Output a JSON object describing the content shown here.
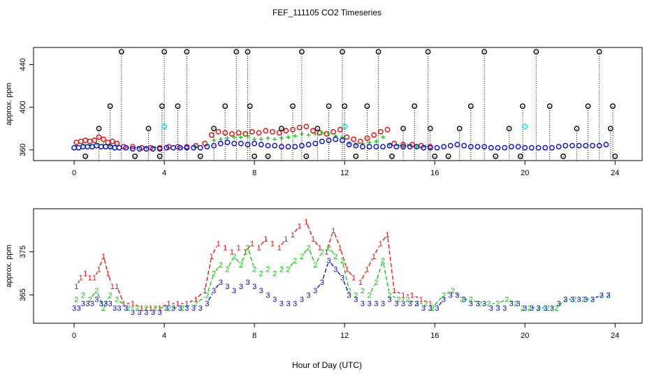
{
  "title": "FEF_111105  CO2 Timeseries",
  "xlabel": "Hour of Day (UTC)",
  "colors": {
    "red": "#ff0000",
    "green": "#00cc00",
    "blue": "#0000ff",
    "black": "#000000",
    "cyan": "#00e5e5"
  },
  "chart_data": [
    {
      "type": "scatter",
      "ylabel": "approx. ppm",
      "xlim": [
        -1.8,
        25.2
      ],
      "ylim": [
        350,
        456
      ],
      "xticks": [
        0,
        4,
        8,
        12,
        16,
        20,
        24
      ],
      "yticks": [
        360,
        400,
        440
      ],
      "series": [
        {
          "name": "red",
          "marker": "o",
          "color": "#ff0000",
          "x": [
            0.1,
            0.3,
            0.5,
            0.7,
            0.9,
            1.1,
            1.3,
            1.5,
            1.7,
            1.9,
            2.2,
            2.6,
            3.0,
            3.4,
            3.8,
            4.2,
            4.6,
            5.0,
            5.4,
            5.8,
            6.1,
            6.4,
            6.7,
            7.0,
            7.3,
            7.6,
            7.9,
            8.2,
            8.5,
            8.8,
            9.1,
            9.4,
            9.7,
            10.0,
            10.3,
            10.6,
            10.9,
            11.2,
            11.5,
            11.8,
            12.1,
            12.4,
            12.7,
            13.0,
            13.3,
            13.6,
            13.9,
            14.2,
            14.6,
            15.0,
            15.4,
            15.8
          ],
          "y": [
            367,
            368,
            369,
            368,
            369,
            372,
            370,
            367,
            368,
            366,
            363,
            363,
            362,
            362,
            362,
            363,
            363,
            363,
            364,
            366,
            374,
            377,
            376,
            375,
            376,
            375,
            377,
            376,
            378,
            377,
            376,
            378,
            379,
            381,
            382,
            378,
            376,
            375,
            377,
            379,
            372,
            370,
            368,
            371,
            374,
            377,
            379,
            366,
            365,
            365,
            364,
            363
          ]
        },
        {
          "name": "green",
          "marker": "+",
          "color": "#00cc00",
          "x": [
            0.1,
            0.4,
            0.7,
            1.0,
            1.3,
            1.6,
            1.9,
            2.4,
            2.8,
            3.2,
            3.6,
            4.2,
            4.8,
            5.4,
            5.9,
            6.2,
            6.5,
            6.8,
            7.1,
            7.4,
            7.7,
            8.0,
            8.3,
            8.6,
            8.9,
            9.2,
            9.5,
            9.8,
            10.1,
            10.4,
            10.7,
            11.0,
            11.3,
            11.6,
            11.9,
            12.2,
            12.5,
            12.8,
            13.1,
            13.4,
            13.7,
            14.0,
            14.4,
            14.8,
            15.2,
            15.6
          ],
          "y": [
            364,
            365,
            364,
            366,
            365,
            364,
            364,
            362,
            362,
            362,
            362,
            362,
            362,
            363,
            365,
            369,
            370,
            371,
            372,
            372,
            373,
            370,
            370,
            371,
            370,
            371,
            372,
            373,
            375,
            374,
            375,
            376,
            375,
            373,
            372,
            366,
            365,
            366,
            367,
            368,
            372,
            365,
            364,
            364,
            363,
            363
          ]
        },
        {
          "name": "blue",
          "marker": "o",
          "color": "#0000ff",
          "x": [
            0.0,
            0.2,
            0.4,
            0.6,
            0.8,
            1.0,
            1.2,
            1.4,
            1.6,
            1.8,
            2.0,
            2.3,
            2.6,
            2.9,
            3.2,
            3.5,
            3.8,
            4.1,
            4.4,
            4.7,
            5.0,
            5.3,
            5.6,
            5.9,
            6.2,
            6.5,
            6.8,
            7.1,
            7.4,
            7.7,
            8.0,
            8.3,
            8.6,
            8.9,
            9.2,
            9.5,
            9.8,
            10.1,
            10.4,
            10.7,
            11.0,
            11.3,
            11.6,
            11.9,
            12.2,
            12.5,
            12.8,
            13.1,
            13.4,
            13.7,
            14.0,
            14.3,
            14.6,
            14.9,
            15.2,
            15.5,
            15.8,
            16.1,
            16.4,
            16.7,
            17.0,
            17.3,
            17.6,
            17.9,
            18.2,
            18.5,
            18.8,
            19.1,
            19.4,
            19.7,
            20.0,
            20.3,
            20.6,
            20.9,
            21.2,
            21.5,
            21.8,
            22.1,
            22.4,
            22.7,
            23.0,
            23.3,
            23.6
          ],
          "y": [
            362,
            362,
            363,
            363,
            363,
            364,
            363,
            363,
            363,
            362,
            362,
            362,
            361,
            361,
            361,
            361,
            361,
            362,
            362,
            362,
            362,
            362,
            362,
            363,
            364,
            366,
            367,
            366,
            366,
            365,
            366,
            365,
            364,
            364,
            363,
            363,
            363,
            364,
            365,
            366,
            368,
            369,
            370,
            369,
            365,
            364,
            363,
            363,
            363,
            363,
            364,
            363,
            363,
            363,
            363,
            362,
            362,
            362,
            363,
            364,
            365,
            364,
            363,
            363,
            363,
            362,
            362,
            362,
            363,
            363,
            362,
            362,
            362,
            362,
            362,
            363,
            364,
            364,
            364,
            364,
            364,
            364,
            365
          ]
        },
        {
          "name": "black",
          "marker": "o",
          "color": "#000000",
          "x": [
            0.5,
            1.1,
            1.6,
            2.1,
            2.7,
            3.3,
            3.8,
            3.9,
            4.0,
            4.6,
            5.0,
            5.6,
            6.2,
            6.7,
            7.2,
            7.7,
            7.8,
            8.0,
            8.6,
            9.2,
            9.7,
            10.1,
            10.3,
            10.8,
            11.3,
            11.9,
            12.0,
            12.5,
            13.0,
            13.5,
            14.1,
            14.6,
            15.1,
            15.7,
            15.8,
            16.0,
            16.6,
            17.1,
            17.6,
            18.2,
            18.7,
            19.3,
            19.8,
            19.9,
            20.5,
            21.1,
            21.7,
            22.3,
            22.8,
            23.3,
            23.8,
            23.9,
            24.0
          ],
          "y": [
            354,
            380,
            401,
            452,
            354,
            380,
            354,
            401,
            452,
            401,
            452,
            354,
            380,
            401,
            452,
            452,
            401,
            354,
            354,
            380,
            401,
            452,
            354,
            380,
            401,
            452,
            401,
            354,
            401,
            452,
            354,
            380,
            401,
            452,
            380,
            354,
            354,
            380,
            401,
            452,
            354,
            380,
            354,
            401,
            452,
            401,
            354,
            380,
            401,
            452,
            380,
            401,
            354
          ]
        },
        {
          "name": "cyan",
          "marker": "o",
          "color": "#00e5e5",
          "x": [
            4.0,
            12.0,
            20.0
          ],
          "y": [
            382,
            382,
            382
          ]
        }
      ]
    },
    {
      "type": "line",
      "ylabel": "approx. ppm",
      "xlim": [
        -1.8,
        25.2
      ],
      "ylim": [
        358.4,
        385
      ],
      "xticks": [
        0,
        4,
        8,
        12,
        16,
        20,
        24
      ],
      "yticks": [
        365,
        375
      ],
      "series": [
        {
          "name": "1",
          "color": "#ff0000",
          "x": [
            0.1,
            0.3,
            0.5,
            0.7,
            0.9,
            1.1,
            1.3,
            1.5,
            1.7,
            1.9,
            2.2,
            2.6,
            3.0,
            3.4,
            3.8,
            4.2,
            4.6,
            5.0,
            5.4,
            5.8,
            6.1,
            6.4,
            6.7,
            7.0,
            7.3,
            7.6,
            7.9,
            8.2,
            8.5,
            8.8,
            9.1,
            9.4,
            9.7,
            10.0,
            10.3,
            10.6,
            10.9,
            11.2,
            11.5,
            11.8,
            12.1,
            12.4,
            12.7,
            13.0,
            13.3,
            13.6,
            13.9,
            14.2,
            14.6,
            15.0,
            15.4,
            15.8
          ],
          "y": [
            367,
            369,
            370,
            369,
            369,
            371,
            374,
            370,
            367,
            367,
            363,
            363,
            362,
            362,
            362,
            363,
            363,
            363,
            364,
            366,
            374,
            377,
            376,
            375,
            376,
            375,
            377,
            376,
            378,
            377,
            376,
            378,
            379,
            381,
            382,
            378,
            376,
            375,
            380,
            376,
            371,
            369,
            368,
            371,
            374,
            377,
            379,
            366,
            365,
            365,
            364,
            363
          ]
        },
        {
          "name": "2",
          "color": "#00cc00",
          "x": [
            0.1,
            0.4,
            0.7,
            1.0,
            1.3,
            1.6,
            1.9,
            2.4,
            2.8,
            3.2,
            3.6,
            4.2,
            4.8,
            5.4,
            5.9,
            6.2,
            6.5,
            6.8,
            7.1,
            7.4,
            7.7,
            8.0,
            8.3,
            8.6,
            8.9,
            9.2,
            9.5,
            9.8,
            10.1,
            10.4,
            10.7,
            11.0,
            11.3,
            11.6,
            11.9,
            12.2,
            12.5,
            12.8,
            13.1,
            13.4,
            13.7,
            14.0,
            14.4,
            14.8,
            15.2,
            15.6,
            15.9,
            16.4,
            16.8,
            17.2,
            17.6,
            18.0,
            18.4,
            18.8,
            19.2,
            19.6,
            19.9,
            20.2,
            20.6,
            21.0,
            21.4,
            21.8,
            22.2,
            22.6,
            23.0,
            23.4,
            23.7
          ],
          "y": [
            364,
            365,
            364,
            366,
            362,
            365,
            364,
            362,
            362,
            362,
            362,
            362,
            362,
            363,
            365,
            370,
            372,
            371,
            374,
            372,
            376,
            371,
            370,
            371,
            370,
            371,
            371,
            373,
            374,
            376,
            372,
            375,
            376,
            374,
            373,
            366,
            365,
            366,
            365,
            368,
            373,
            365,
            364,
            364,
            363,
            363,
            362,
            365,
            366,
            364,
            364,
            363,
            363,
            363,
            364,
            363,
            362,
            362,
            362,
            362,
            362,
            364,
            364,
            364,
            364,
            365,
            365
          ]
        },
        {
          "name": "3",
          "color": "#0000ff",
          "x": [
            0.0,
            0.2,
            0.4,
            0.6,
            0.8,
            1.0,
            1.2,
            1.4,
            1.6,
            1.8,
            2.0,
            2.3,
            2.6,
            2.9,
            3.2,
            3.5,
            3.8,
            4.1,
            4.4,
            4.7,
            5.0,
            5.3,
            5.6,
            5.9,
            6.2,
            6.5,
            6.8,
            7.1,
            7.4,
            7.7,
            8.0,
            8.3,
            8.6,
            8.9,
            9.2,
            9.5,
            9.8,
            10.1,
            10.4,
            10.7,
            11.0,
            11.3,
            11.6,
            11.9,
            12.2,
            12.5,
            12.8,
            13.1,
            13.4,
            13.7,
            14.0,
            14.3,
            14.6,
            14.9,
            15.2,
            15.5,
            15.8,
            16.1,
            16.4,
            16.7,
            17.0,
            17.3,
            17.6,
            17.9,
            18.2,
            18.5,
            18.8,
            19.1,
            19.4,
            19.7,
            20.0,
            20.3,
            20.6,
            20.9,
            21.2,
            21.5,
            21.8,
            22.1,
            22.4,
            22.7,
            23.0,
            23.4,
            23.7
          ],
          "y": [
            362,
            362,
            363,
            363,
            363,
            364,
            363,
            363,
            363,
            362,
            362,
            362,
            361,
            361,
            361,
            361,
            361,
            362,
            362,
            362,
            362,
            362,
            362,
            363,
            366,
            368,
            367,
            366,
            367,
            368,
            367,
            366,
            365,
            364,
            363,
            363,
            363,
            364,
            365,
            366,
            368,
            373,
            371,
            369,
            365,
            364,
            363,
            363,
            363,
            363,
            364,
            363,
            363,
            363,
            363,
            362,
            362,
            362,
            364,
            365,
            365,
            364,
            363,
            363,
            363,
            362,
            362,
            362,
            363,
            363,
            362,
            362,
            362,
            362,
            362,
            363,
            364,
            364,
            364,
            364,
            364,
            365,
            365
          ]
        }
      ]
    }
  ]
}
